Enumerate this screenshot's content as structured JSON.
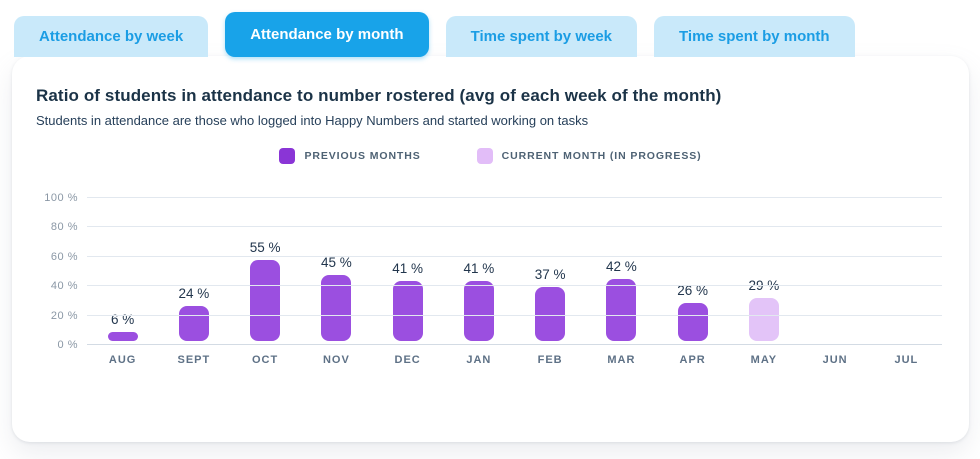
{
  "tabs": {
    "items": [
      {
        "label": "Attendance by week",
        "active": false
      },
      {
        "label": "Attendance by month",
        "active": true
      },
      {
        "label": "Time spent by week",
        "active": false
      },
      {
        "label": "Time spent by month",
        "active": false
      }
    ]
  },
  "panel": {
    "title": "Ratio of students in attendance to number rostered (avg of each week of the month)",
    "subtitle": "Students in attendance are those who logged into Happy Numbers and started working on tasks"
  },
  "legend": {
    "items": [
      {
        "label": "PREVIOUS MONTHS",
        "color": "#8a35d6"
      },
      {
        "label": "CURRENT MONTH (IN PROGRESS)",
        "color": "#e2bdf8"
      }
    ]
  },
  "colors": {
    "tab_active_bg": "#18a3e9",
    "tab_active_text": "#ffffff",
    "tab_inactive_bg": "#c9e9fa",
    "tab_inactive_text": "#1b9de4",
    "bar_previous": "#9b4fe0",
    "bar_current": "#e3c4f8",
    "gridline": "#e2e8ef"
  },
  "chart_data": {
    "type": "bar",
    "title": "Ratio of students in attendance to number rostered (avg of each week of the month)",
    "xlabel": "",
    "ylabel": "",
    "categories": [
      "AUG",
      "SEPT",
      "OCT",
      "NOV",
      "DEC",
      "JAN",
      "FEB",
      "MAR",
      "APR",
      "MAY",
      "JUN",
      "JUL"
    ],
    "points": [
      {
        "month": "AUG",
        "value": 6,
        "series": "previous"
      },
      {
        "month": "SEPT",
        "value": 24,
        "series": "previous"
      },
      {
        "month": "OCT",
        "value": 55,
        "series": "previous"
      },
      {
        "month": "NOV",
        "value": 45,
        "series": "previous"
      },
      {
        "month": "DEC",
        "value": 41,
        "series": "previous"
      },
      {
        "month": "JAN",
        "value": 41,
        "series": "previous"
      },
      {
        "month": "FEB",
        "value": 37,
        "series": "previous"
      },
      {
        "month": "MAR",
        "value": 42,
        "series": "previous"
      },
      {
        "month": "APR",
        "value": 26,
        "series": "previous"
      },
      {
        "month": "MAY",
        "value": 29,
        "series": "current"
      },
      {
        "month": "JUN",
        "value": null,
        "series": null
      },
      {
        "month": "JUL",
        "value": null,
        "series": null
      }
    ],
    "series_colors": {
      "previous": "#9b4fe0",
      "current": "#e3c4f8"
    },
    "series_labels": {
      "previous": "PREVIOUS MONTHS",
      "current": "CURRENT MONTH (IN PROGRESS)"
    },
    "value_suffix": " %",
    "y_ticks": [
      {
        "label": "0 %",
        "value": 0
      },
      {
        "label": "20 %",
        "value": 20
      },
      {
        "label": "40 %",
        "value": 40
      },
      {
        "label": "60 %",
        "value": 60
      },
      {
        "label": "80 %",
        "value": 80
      },
      {
        "label": "100 %",
        "value": 100
      }
    ],
    "ylim": [
      0,
      100
    ],
    "grid": "horizontal",
    "legend_position": "top-center"
  }
}
